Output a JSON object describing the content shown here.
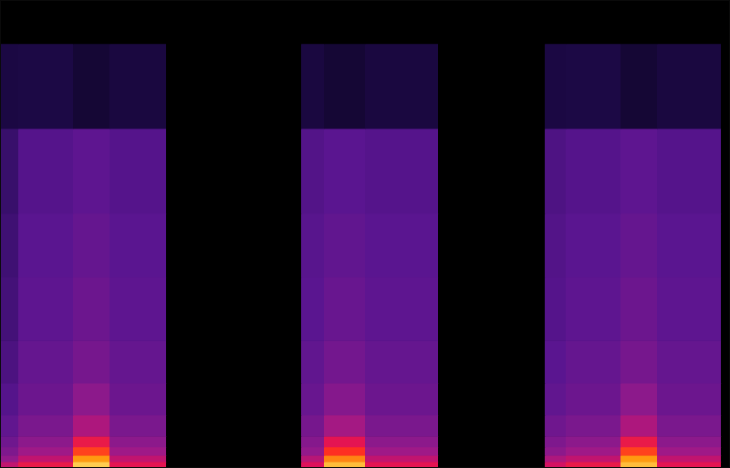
{
  "chart_data": {
    "type": "heatmap",
    "x_bins": [
      0,
      0.2,
      0.8,
      1.2,
      1.82,
      3.3,
      3.55,
      4.0,
      4.8,
      5.97,
      6.2,
      6.8,
      7.2,
      7.9,
      8.0
    ],
    "y_bins": [
      0,
      0.3,
      0.6,
      1,
      1.5,
      2.5,
      4,
      6,
      9,
      12,
      16,
      20,
      22.05
    ],
    "cells": [
      [
        -40,
        -30,
        -6,
        -32,
        -120,
        -34,
        -8,
        -32,
        -120,
        -36,
        -30,
        -8,
        -32,
        -120
      ],
      [
        -50,
        -40,
        -12,
        -40,
        -120,
        -42,
        -14,
        -40,
        -120,
        -44,
        -40,
        -12,
        -40,
        -120
      ],
      [
        -56,
        -47,
        -20,
        -47,
        -120,
        -50,
        -22,
        -47,
        -120,
        -52,
        -47,
        -20,
        -47,
        -120
      ],
      [
        -60,
        -52,
        -30,
        -52,
        -120,
        -54,
        -32,
        -52,
        -120,
        -56,
        -52,
        -30,
        -52,
        -120
      ],
      [
        -64,
        -57,
        -44,
        -57,
        -120,
        -58,
        -46,
        -57,
        -120,
        -60,
        -57,
        -44,
        -57,
        -120
      ],
      [
        -68,
        -61,
        -52,
        -61,
        -120,
        -62,
        -54,
        -61,
        -120,
        -64,
        -61,
        -52,
        -61,
        -120
      ],
      [
        -72,
        -63,
        -58,
        -63,
        -120,
        -64,
        -59,
        -63,
        -120,
        -66,
        -63,
        -58,
        -63,
        -120
      ],
      [
        -75,
        -65,
        -61,
        -65,
        -120,
        -66,
        -62,
        -65,
        -120,
        -68,
        -65,
        -61,
        -65,
        -120
      ],
      [
        -77,
        -66,
        -63,
        -66,
        -120,
        -67,
        -64,
        -66,
        -120,
        -69,
        -66,
        -63,
        -66,
        -120
      ],
      [
        -80,
        -68,
        -65,
        -68,
        -120,
        -69,
        -66,
        -68,
        -120,
        -71,
        -68,
        -65,
        -68,
        -120
      ],
      [
        -95,
        -94,
        -100,
        -96,
        -120,
        -96,
        -100,
        -96,
        -120,
        -95,
        -94,
        -100,
        -96,
        -120
      ],
      [
        -120,
        -120,
        -120,
        -120,
        -120,
        -120,
        -120,
        -120,
        -120,
        -120,
        -120,
        -120,
        -120,
        -120
      ]
    ],
    "xlim": [
      0,
      8
    ],
    "ylim": [
      0,
      22.05
    ],
    "colorbar_range": [
      -120,
      0
    ],
    "tick_labels": false
  }
}
